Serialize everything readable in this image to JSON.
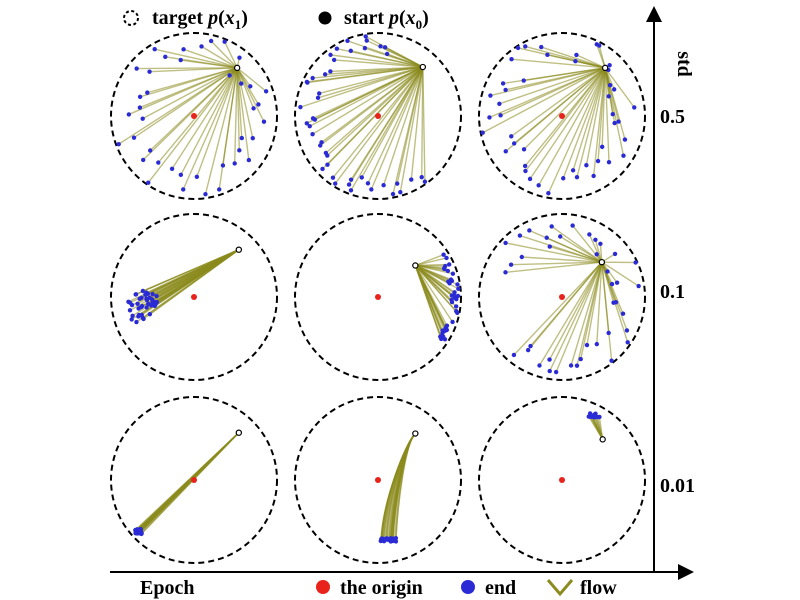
{
  "legend_top": {
    "target": {
      "prefix": "target ",
      "p": "p",
      "open": "(",
      "var": "x",
      "sub": "1",
      "close": ")"
    },
    "start": {
      "prefix": "start ",
      "p": "p",
      "open": "(",
      "var": "x",
      "sub": "0",
      "close": ")"
    }
  },
  "axes": {
    "y_title": "std",
    "x_title": "Epoch",
    "std_levels": [
      "0.5",
      "0.1",
      "0.01"
    ]
  },
  "legend_bottom": {
    "origin": "the origin",
    "end": "end",
    "flow": "flow"
  },
  "colors": {
    "flow": "#8b8b1e",
    "end": "#2b2bd6",
    "origin": "#e8231b",
    "circle": "#000000"
  },
  "chart_data": {
    "type": "diagram",
    "rows_std": [
      0.5,
      0.1,
      0.01
    ],
    "panels": [
      {
        "row": 0,
        "col": 0,
        "start": [
          0.52,
          0.58
        ],
        "pattern": "spread",
        "n": 40
      },
      {
        "row": 0,
        "col": 1,
        "start": [
          0.54,
          0.59
        ],
        "pattern": "spread-up",
        "n": 45
      },
      {
        "row": 0,
        "col": 2,
        "start": [
          0.52,
          0.58
        ],
        "pattern": "spread",
        "n": 45
      },
      {
        "row": 1,
        "col": 0,
        "start": [
          0.54,
          0.57
        ],
        "pattern": "fan-lowleft",
        "n": 40
      },
      {
        "row": 1,
        "col": 1,
        "start": [
          0.45,
          0.38
        ],
        "pattern": "fan-right",
        "n": 40
      },
      {
        "row": 1,
        "col": 2,
        "start": [
          0.48,
          0.42
        ],
        "pattern": "spread-right",
        "n": 40
      },
      {
        "row": 2,
        "col": 0,
        "start": [
          0.54,
          0.57
        ],
        "pattern": "narrow-lowleft",
        "n": 30
      },
      {
        "row": 2,
        "col": 1,
        "start": [
          0.45,
          0.56
        ],
        "pattern": "curve-down",
        "n": 30
      },
      {
        "row": 2,
        "col": 2,
        "start": [
          0.49,
          0.49
        ],
        "pattern": "tiny-up",
        "n": 12
      }
    ]
  }
}
